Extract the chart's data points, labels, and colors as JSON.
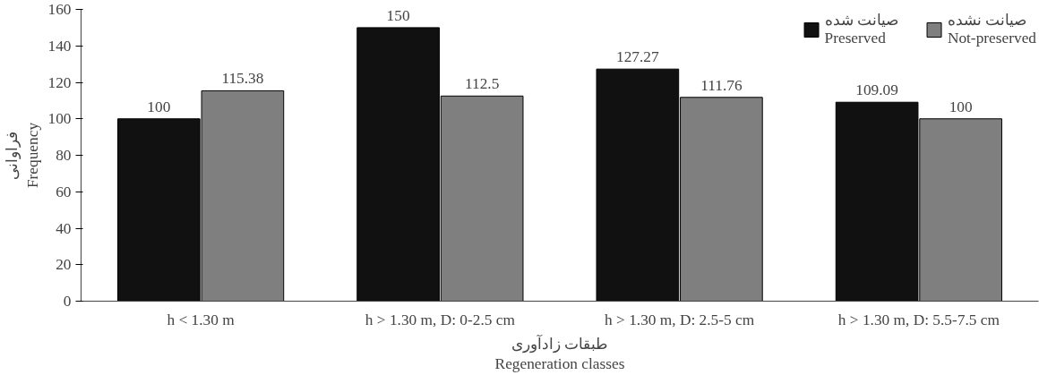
{
  "chart_data": {
    "type": "bar",
    "xlabel": "طبقات زادآوری\nRegeneration classes",
    "ylabel": "فراوانی\nFrequency",
    "categories": [
      "h < 1.30 m",
      "h > 1.30 m, D: 0-2.5 cm",
      "h > 1.30 m, D: 2.5-5 cm",
      "h > 1.30 m, D: 5.5-7.5 cm"
    ],
    "series": [
      {
        "name": "صیانت شده\nPreserved",
        "color": "#111111",
        "values": [
          100,
          150,
          127.27,
          109.09
        ]
      },
      {
        "name": "صیانت نشده\nNot-preserved",
        "color": "#7f7f7f",
        "values": [
          115.38,
          112.5,
          111.76,
          100
        ]
      }
    ],
    "ylim": [
      0,
      160
    ],
    "yticks": [
      0,
      20,
      40,
      60,
      80,
      100,
      120,
      140,
      160
    ],
    "grid": false,
    "legend": "top right",
    "data_labels": true
  }
}
